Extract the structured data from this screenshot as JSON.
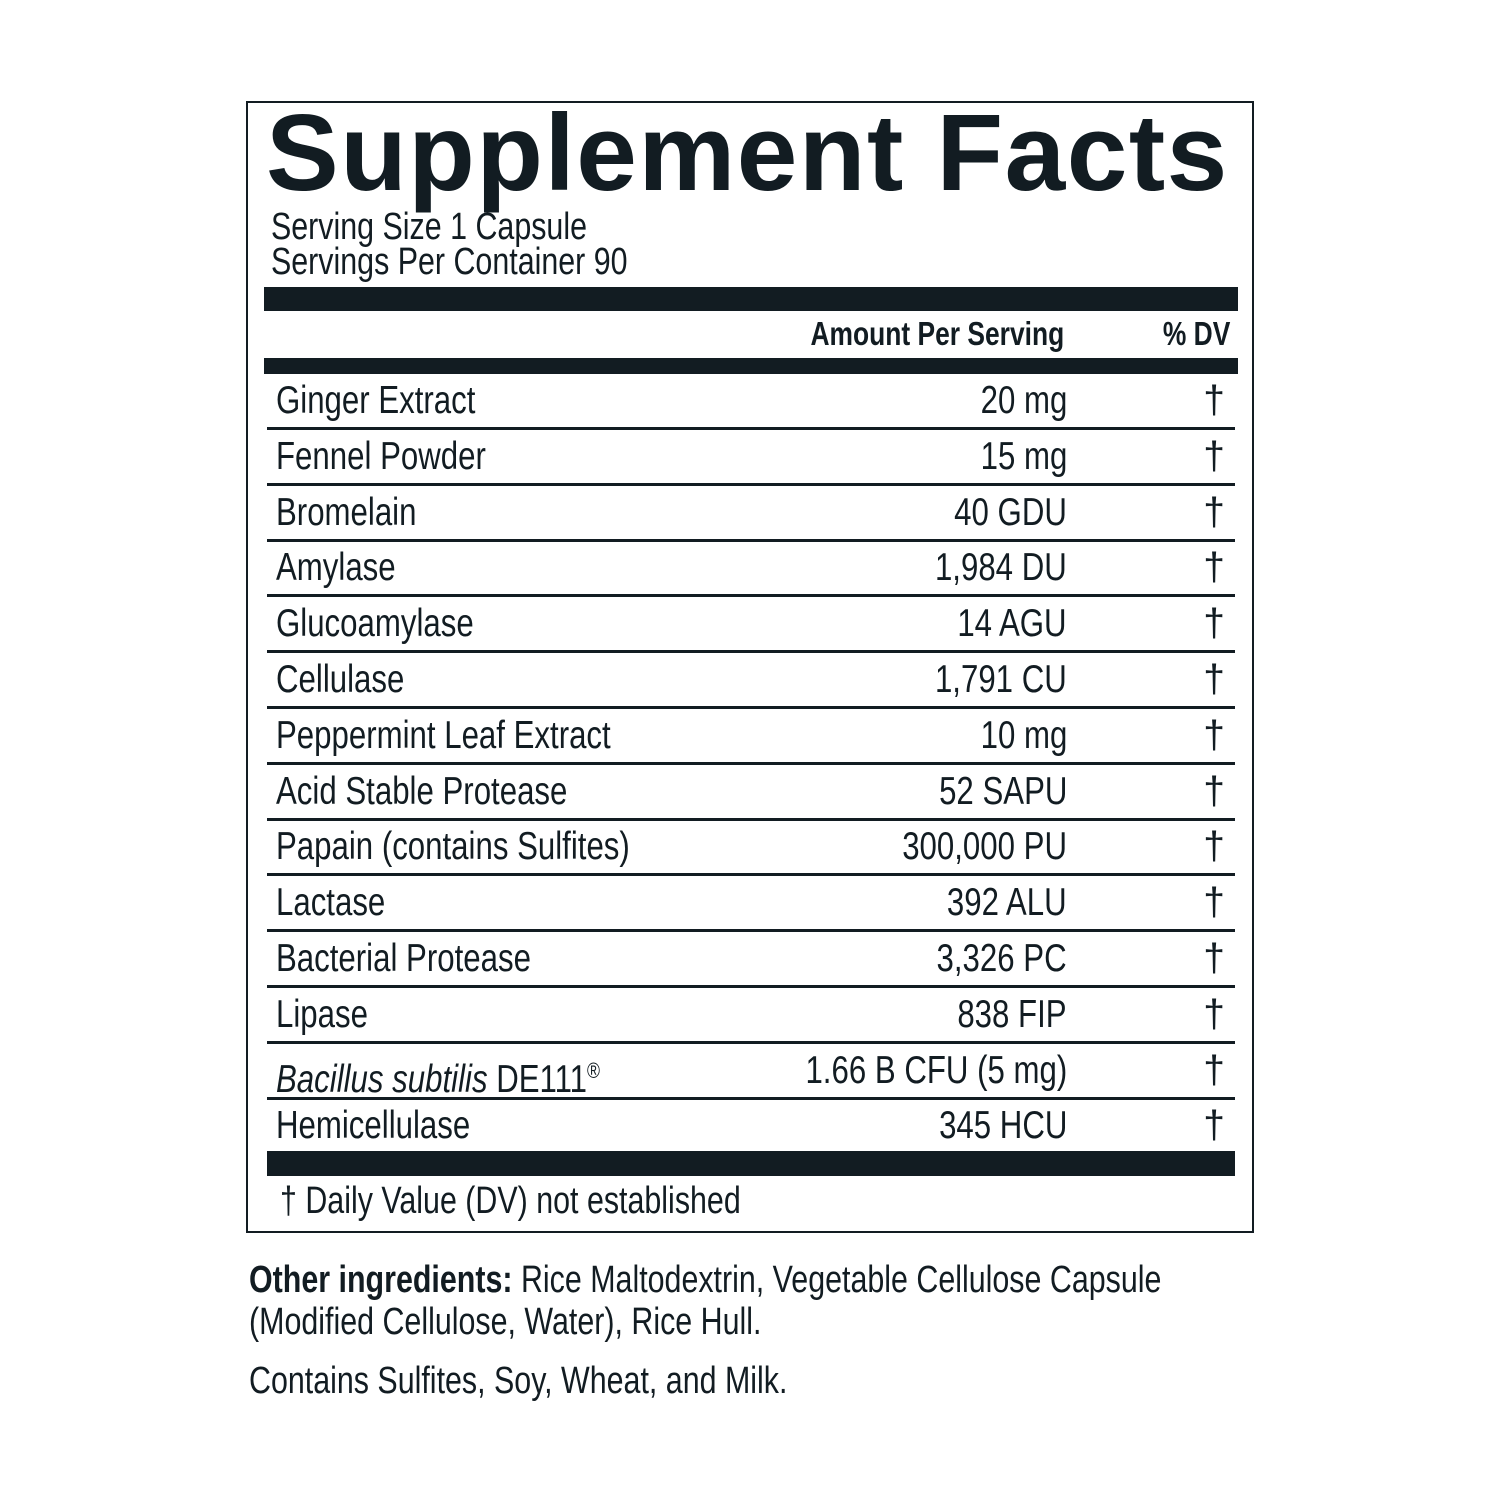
{
  "title": "Supplement Facts",
  "serving_size": "Serving Size 1 Capsule",
  "servings_per_container": "Servings Per Container 90",
  "header": {
    "amount": "Amount Per Serving",
    "dv": "% DV"
  },
  "rows": [
    {
      "name": "Ginger Extract",
      "amount": "20 mg",
      "dv": "†"
    },
    {
      "name": "Fennel Powder",
      "amount": "15 mg",
      "dv": "†"
    },
    {
      "name": "Bromelain",
      "amount": "40 GDU",
      "dv": "†"
    },
    {
      "name": "Amylase",
      "amount": "1,984 DU",
      "dv": "†"
    },
    {
      "name": "Glucoamylase",
      "amount": "14 AGU",
      "dv": "†"
    },
    {
      "name": "Cellulase",
      "amount": "1,791 CU",
      "dv": "†"
    },
    {
      "name": "Peppermint Leaf Extract",
      "amount": "10 mg",
      "dv": "†"
    },
    {
      "name": "Acid Stable Protease",
      "amount": "52 SAPU",
      "dv": "†"
    },
    {
      "name": "Papain (contains Sulfites)",
      "amount": "300,000 PU",
      "dv": "†"
    },
    {
      "name": "Lactase",
      "amount": "392 ALU",
      "dv": "†"
    },
    {
      "name": "Bacterial Protease",
      "amount": "3,326 PC",
      "dv": "†"
    },
    {
      "name": "Lipase",
      "amount": "838 FIP",
      "dv": "†"
    },
    {
      "name_italic": "Bacillus subtilis",
      "name": " DE111",
      "mark": "®",
      "amount": "1.66 B CFU (5 mg)",
      "dv": "†"
    },
    {
      "name": "Hemicellulase",
      "amount": "345 HCU",
      "dv": "†"
    }
  ],
  "footnote": "† Daily Value (DV) not established",
  "other_ingredients": {
    "label": "Other ingredients:",
    "line1": " Rice Maltodextrin, Vegetable Cellulose Capsule",
    "line2": "(Modified Cellulose, Water), Rice Hull."
  },
  "allergens": "Contains Sulfites, Soy, Wheat, and Milk.",
  "colors": {
    "ink": "#121c22",
    "background": "#ffffff"
  }
}
